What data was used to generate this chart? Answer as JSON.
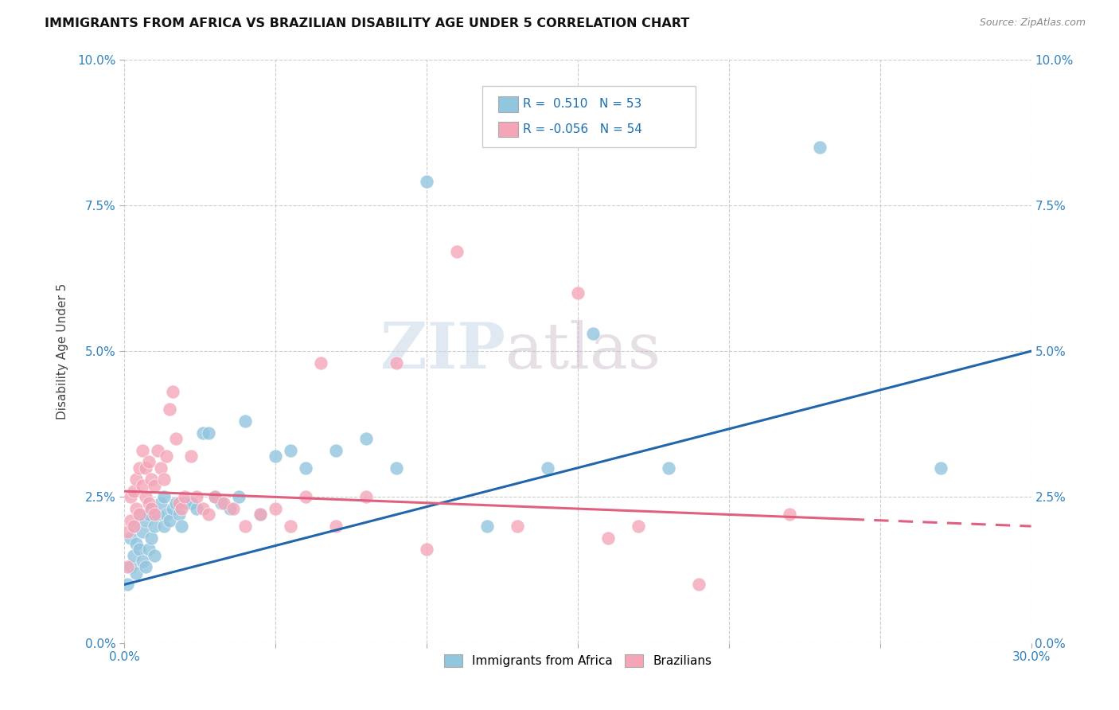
{
  "title": "IMMIGRANTS FROM AFRICA VS BRAZILIAN DISABILITY AGE UNDER 5 CORRELATION CHART",
  "source": "Source: ZipAtlas.com",
  "ylabel": "Disability Age Under 5",
  "xlim": [
    0.0,
    0.3
  ],
  "ylim": [
    0.0,
    0.1
  ],
  "legend_label_blue": "Immigrants from Africa",
  "legend_label_pink": "Brazilians",
  "R_blue": 0.51,
  "N_blue": 53,
  "R_pink": -0.056,
  "N_pink": 54,
  "blue_color": "#92c5de",
  "pink_color": "#f4a6b8",
  "trend_blue": "#2166ac",
  "trend_pink": "#e06080",
  "watermark_ZIP": "ZIP",
  "watermark_atlas": "atlas",
  "blue_scatter_x": [
    0.001,
    0.002,
    0.002,
    0.003,
    0.003,
    0.004,
    0.004,
    0.005,
    0.005,
    0.006,
    0.006,
    0.007,
    0.007,
    0.008,
    0.008,
    0.009,
    0.009,
    0.01,
    0.01,
    0.011,
    0.012,
    0.013,
    0.013,
    0.014,
    0.015,
    0.016,
    0.017,
    0.018,
    0.019,
    0.02,
    0.022,
    0.024,
    0.026,
    0.028,
    0.03,
    0.032,
    0.035,
    0.038,
    0.04,
    0.045,
    0.05,
    0.055,
    0.06,
    0.07,
    0.08,
    0.09,
    0.1,
    0.12,
    0.14,
    0.155,
    0.18,
    0.23,
    0.27
  ],
  "blue_scatter_y": [
    0.01,
    0.013,
    0.018,
    0.015,
    0.02,
    0.012,
    0.017,
    0.016,
    0.022,
    0.014,
    0.019,
    0.013,
    0.021,
    0.016,
    0.022,
    0.018,
    0.023,
    0.015,
    0.02,
    0.022,
    0.024,
    0.02,
    0.025,
    0.022,
    0.021,
    0.023,
    0.024,
    0.022,
    0.02,
    0.024,
    0.024,
    0.023,
    0.036,
    0.036,
    0.025,
    0.024,
    0.023,
    0.025,
    0.038,
    0.022,
    0.032,
    0.033,
    0.03,
    0.033,
    0.035,
    0.03,
    0.079,
    0.02,
    0.03,
    0.053,
    0.03,
    0.085,
    0.03
  ],
  "pink_scatter_x": [
    0.001,
    0.001,
    0.002,
    0.002,
    0.003,
    0.003,
    0.004,
    0.004,
    0.005,
    0.005,
    0.006,
    0.006,
    0.007,
    0.007,
    0.008,
    0.008,
    0.009,
    0.009,
    0.01,
    0.01,
    0.011,
    0.012,
    0.013,
    0.014,
    0.015,
    0.016,
    0.017,
    0.018,
    0.019,
    0.02,
    0.022,
    0.024,
    0.026,
    0.028,
    0.03,
    0.033,
    0.036,
    0.04,
    0.045,
    0.05,
    0.055,
    0.06,
    0.065,
    0.07,
    0.08,
    0.09,
    0.1,
    0.11,
    0.13,
    0.15,
    0.16,
    0.17,
    0.19,
    0.22
  ],
  "pink_scatter_y": [
    0.013,
    0.019,
    0.021,
    0.025,
    0.02,
    0.026,
    0.023,
    0.028,
    0.022,
    0.03,
    0.027,
    0.033,
    0.025,
    0.03,
    0.024,
    0.031,
    0.023,
    0.028,
    0.022,
    0.027,
    0.033,
    0.03,
    0.028,
    0.032,
    0.04,
    0.043,
    0.035,
    0.024,
    0.023,
    0.025,
    0.032,
    0.025,
    0.023,
    0.022,
    0.025,
    0.024,
    0.023,
    0.02,
    0.022,
    0.023,
    0.02,
    0.025,
    0.048,
    0.02,
    0.025,
    0.048,
    0.016,
    0.067,
    0.02,
    0.06,
    0.018,
    0.02,
    0.01,
    0.022
  ]
}
